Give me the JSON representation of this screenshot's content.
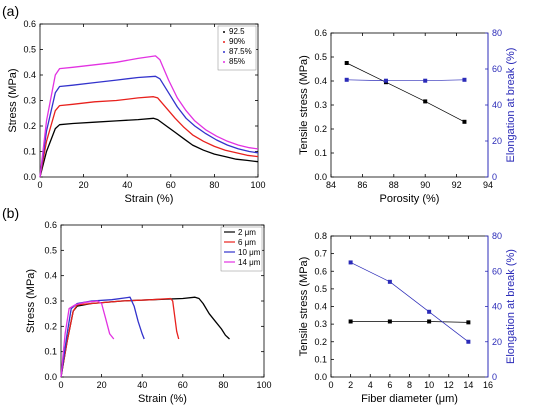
{
  "labels": {
    "a": "(a)",
    "b": "(b)"
  },
  "chart_data": [
    {
      "type": "line",
      "xlabel": "Strain (%)",
      "ylabel": "Stress (MPa)",
      "xlim": [
        0,
        100
      ],
      "ylim": [
        0,
        0.6
      ],
      "xticks": [
        "0",
        "20",
        "40",
        "60",
        "80",
        "100"
      ],
      "yticks": [
        "0.0",
        "0.1",
        "0.2",
        "0.3",
        "0.4",
        "0.5",
        "0.6"
      ],
      "legend_position": "top-right",
      "series": [
        {
          "name": "92.5",
          "color": "#000000",
          "x": [
            0,
            3,
            7,
            9,
            15,
            25,
            35,
            45,
            52,
            54,
            58,
            62,
            66,
            70,
            75,
            80,
            85,
            90,
            95,
            100
          ],
          "y": [
            0,
            0.1,
            0.19,
            0.205,
            0.21,
            0.215,
            0.22,
            0.225,
            0.23,
            0.225,
            0.2,
            0.175,
            0.15,
            0.125,
            0.105,
            0.09,
            0.08,
            0.07,
            0.065,
            0.06
          ]
        },
        {
          "name": "90%",
          "color": "#e8211d",
          "x": [
            0,
            3,
            7,
            9,
            15,
            25,
            35,
            45,
            52,
            54,
            58,
            62,
            66,
            70,
            75,
            80,
            85,
            90,
            95,
            100
          ],
          "y": [
            0,
            0.14,
            0.26,
            0.28,
            0.285,
            0.295,
            0.3,
            0.31,
            0.315,
            0.31,
            0.27,
            0.23,
            0.195,
            0.165,
            0.14,
            0.12,
            0.105,
            0.095,
            0.085,
            0.08
          ]
        },
        {
          "name": "87.5%",
          "color": "#3333cc",
          "x": [
            0,
            3,
            7,
            9,
            15,
            25,
            35,
            45,
            53,
            55,
            59,
            63,
            67,
            71,
            76,
            81,
            86,
            91,
            96,
            100
          ],
          "y": [
            0,
            0.18,
            0.33,
            0.355,
            0.36,
            0.37,
            0.38,
            0.39,
            0.395,
            0.385,
            0.33,
            0.275,
            0.23,
            0.2,
            0.17,
            0.145,
            0.125,
            0.11,
            0.1,
            0.095
          ]
        },
        {
          "name": "85%",
          "color": "#e232e2",
          "x": [
            0,
            3,
            7,
            9,
            15,
            25,
            35,
            45,
            53,
            55,
            59,
            63,
            67,
            71,
            76,
            81,
            86,
            91,
            96,
            100
          ],
          "y": [
            0,
            0.22,
            0.4,
            0.425,
            0.43,
            0.44,
            0.45,
            0.465,
            0.475,
            0.46,
            0.38,
            0.31,
            0.26,
            0.22,
            0.185,
            0.16,
            0.14,
            0.125,
            0.115,
            0.11
          ]
        }
      ]
    },
    {
      "type": "line",
      "xlabel": "Porosity (%)",
      "ylabel": "Tensile stress (MPa)",
      "y2label": "Elongation at break (%)",
      "xlim": [
        84,
        94
      ],
      "ylim": [
        0,
        0.6
      ],
      "y2lim": [
        0,
        80
      ],
      "xticks": [
        "84",
        "86",
        "88",
        "90",
        "92",
        "94"
      ],
      "yticks": [
        "0.0",
        "0.1",
        "0.2",
        "0.3",
        "0.4",
        "0.5",
        "0.6"
      ],
      "y2ticks": [
        "0",
        "20",
        "40",
        "60",
        "80"
      ],
      "series": [
        {
          "color": "#000000",
          "axis": "left",
          "marker": "square",
          "x": [
            85,
            87.5,
            90,
            92.5
          ],
          "y": [
            0.475,
            0.395,
            0.315,
            0.23
          ]
        },
        {
          "color": "#2b2bb8",
          "axis": "right",
          "marker": "square",
          "x": [
            85,
            87.5,
            90,
            92.5
          ],
          "y": [
            54,
            53.5,
            53.5,
            54
          ]
        }
      ]
    },
    {
      "type": "line",
      "xlabel": "Strain (%)",
      "ylabel": "Stress (MPa)",
      "xlim": [
        0,
        100
      ],
      "ylim": [
        0,
        0.6
      ],
      "xticks": [
        "0",
        "20",
        "40",
        "60",
        "80",
        "100"
      ],
      "yticks": [
        "0.0",
        "0.1",
        "0.2",
        "0.3",
        "0.4",
        "0.5",
        "0.6"
      ],
      "legend_position": "top-right",
      "series": [
        {
          "name": "2 μm",
          "color": "#000000",
          "x": [
            0,
            3,
            6,
            8,
            15,
            30,
            45,
            60,
            66,
            68,
            70,
            73,
            76,
            79,
            81,
            83
          ],
          "y": [
            0,
            0.14,
            0.26,
            0.28,
            0.29,
            0.3,
            0.305,
            0.31,
            0.315,
            0.31,
            0.29,
            0.25,
            0.22,
            0.19,
            0.165,
            0.15
          ]
        },
        {
          "name": "6 μm",
          "color": "#e8211d",
          "x": [
            0,
            3,
            6,
            8,
            15,
            30,
            45,
            54,
            55,
            56,
            57,
            58
          ],
          "y": [
            0,
            0.14,
            0.26,
            0.285,
            0.29,
            0.3,
            0.305,
            0.31,
            0.3,
            0.24,
            0.18,
            0.15
          ]
        },
        {
          "name": "10 μm",
          "color": "#3333cc",
          "x": [
            0,
            3,
            5,
            8,
            15,
            25,
            34,
            36,
            38,
            40,
            41
          ],
          "y": [
            0,
            0.17,
            0.27,
            0.29,
            0.3,
            0.305,
            0.315,
            0.28,
            0.22,
            0.17,
            0.15
          ]
        },
        {
          "name": "14 μm",
          "color": "#e232e2",
          "x": [
            0,
            2,
            4,
            7,
            12,
            18,
            20,
            22,
            24,
            26
          ],
          "y": [
            0,
            0.17,
            0.27,
            0.285,
            0.295,
            0.3,
            0.29,
            0.23,
            0.17,
            0.15
          ]
        }
      ]
    },
    {
      "type": "line",
      "xlabel": "Fiber diameter (μm)",
      "ylabel": "Tensile stress (MPa)",
      "y2label": "Elongation at break (%)",
      "xlim": [
        0,
        16
      ],
      "ylim": [
        0,
        0.8
      ],
      "y2lim": [
        0,
        80
      ],
      "xticks": [
        "0",
        "2",
        "4",
        "6",
        "8",
        "10",
        "12",
        "14",
        "16"
      ],
      "yticks": [
        "0.0",
        "0.1",
        "0.2",
        "0.3",
        "0.4",
        "0.5",
        "0.6",
        "0.7",
        "0.8"
      ],
      "y2ticks": [
        "0",
        "20",
        "40",
        "60",
        "80"
      ],
      "series": [
        {
          "color": "#000000",
          "axis": "left",
          "marker": "square",
          "x": [
            2,
            6,
            10,
            14
          ],
          "y": [
            0.315,
            0.315,
            0.315,
            0.31
          ]
        },
        {
          "color": "#2b2bb8",
          "axis": "right",
          "marker": "square",
          "x": [
            2,
            6,
            10,
            14
          ],
          "y": [
            65,
            54,
            37,
            20
          ]
        }
      ]
    }
  ]
}
